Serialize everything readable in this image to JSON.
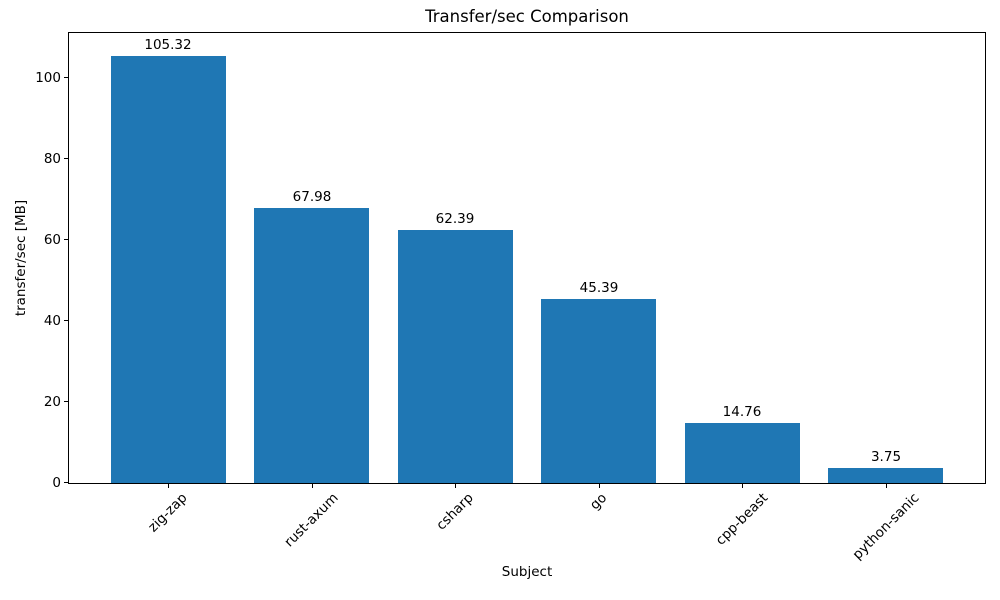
{
  "chart_data": {
    "type": "bar",
    "title": "Transfer/sec Comparison",
    "xlabel": "Subject",
    "ylabel": "transfer/sec [MB]",
    "categories": [
      "zig-zap",
      "rust-axum",
      "csharp",
      "go",
      "cpp-beast",
      "python-sanic"
    ],
    "values": [
      105.32,
      67.98,
      62.39,
      45.39,
      14.76,
      3.75
    ],
    "bar_value_labels": [
      "105.32",
      "67.98",
      "62.39",
      "45.39",
      "14.76",
      "3.75"
    ],
    "yticks": [
      0,
      20,
      40,
      60,
      80,
      100
    ],
    "ylim": [
      0,
      111.1
    ],
    "x_tick_rotation_deg": 45,
    "grid": false,
    "legend": "none",
    "colors": {
      "bar": "#1f77b4",
      "text": "#000000",
      "spine": "#000000"
    }
  }
}
